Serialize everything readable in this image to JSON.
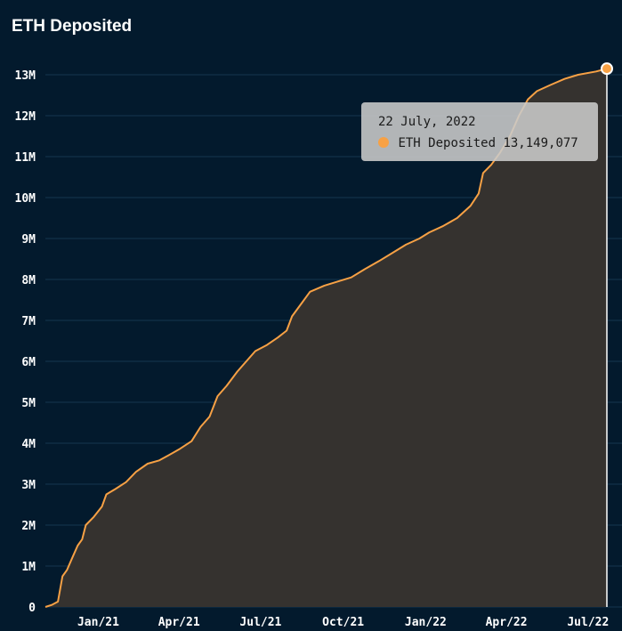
{
  "header": {
    "title": "ETH Deposited"
  },
  "colors": {
    "background": "#031a2d",
    "grid": "#15364f",
    "line": "#f7a145",
    "area": "#35322f",
    "crosshair": "#ffffff"
  },
  "tooltip": {
    "date": "22 July, 2022",
    "series": "ETH Deposited",
    "value": "13,149,077"
  },
  "chart_data": {
    "type": "area",
    "title": "ETH Deposited",
    "y_ticks": [
      {
        "value": 0,
        "label": "0"
      },
      {
        "value": 1000000,
        "label": "1M"
      },
      {
        "value": 2000000,
        "label": "2M"
      },
      {
        "value": 3000000,
        "label": "3M"
      },
      {
        "value": 4000000,
        "label": "4M"
      },
      {
        "value": 5000000,
        "label": "5M"
      },
      {
        "value": 6000000,
        "label": "6M"
      },
      {
        "value": 7000000,
        "label": "7M"
      },
      {
        "value": 8000000,
        "label": "8M"
      },
      {
        "value": 9000000,
        "label": "9M"
      },
      {
        "value": 10000000,
        "label": "10M"
      },
      {
        "value": 11000000,
        "label": "11M"
      },
      {
        "value": 12000000,
        "label": "12M"
      },
      {
        "value": 13000000,
        "label": "13M"
      }
    ],
    "x_ticks": [
      {
        "date": "2021-01-01",
        "label": "Jan/21"
      },
      {
        "date": "2021-04-01",
        "label": "Apr/21"
      },
      {
        "date": "2021-07-01",
        "label": "Jul/21"
      },
      {
        "date": "2021-10-01",
        "label": "Oct/21"
      },
      {
        "date": "2022-01-01",
        "label": "Jan/22"
      },
      {
        "date": "2022-04-01",
        "label": "Apr/22"
      },
      {
        "date": "2022-07-01",
        "label": "Jul/22"
      }
    ],
    "xlim": [
      "2020-11-03",
      "2022-07-22"
    ],
    "ylim": [
      0,
      13000000
    ],
    "grid": true,
    "legend": "none",
    "highlight": {
      "date": "2022-07-22",
      "value": 13149077
    },
    "series": [
      {
        "name": "ETH Deposited",
        "points": [
          [
            "2020-11-03",
            0
          ],
          [
            "2020-11-10",
            50000
          ],
          [
            "2020-11-17",
            130000
          ],
          [
            "2020-11-22",
            750000
          ],
          [
            "2020-11-27",
            900000
          ],
          [
            "2020-12-03",
            1200000
          ],
          [
            "2020-12-09",
            1500000
          ],
          [
            "2020-12-14",
            1650000
          ],
          [
            "2020-12-18",
            2000000
          ],
          [
            "2020-12-27",
            2200000
          ],
          [
            "2021-01-05",
            2450000
          ],
          [
            "2021-01-10",
            2750000
          ],
          [
            "2021-01-20",
            2880000
          ],
          [
            "2021-02-01",
            3050000
          ],
          [
            "2021-02-12",
            3300000
          ],
          [
            "2021-02-25",
            3500000
          ],
          [
            "2021-03-10",
            3580000
          ],
          [
            "2021-03-20",
            3700000
          ],
          [
            "2021-04-01",
            3850000
          ],
          [
            "2021-04-15",
            4050000
          ],
          [
            "2021-04-25",
            4400000
          ],
          [
            "2021-05-05",
            4650000
          ],
          [
            "2021-05-14",
            5150000
          ],
          [
            "2021-05-24",
            5400000
          ],
          [
            "2021-06-05",
            5750000
          ],
          [
            "2021-06-15",
            6000000
          ],
          [
            "2021-06-25",
            6250000
          ],
          [
            "2021-07-08",
            6400000
          ],
          [
            "2021-07-20",
            6580000
          ],
          [
            "2021-07-30",
            6750000
          ],
          [
            "2021-08-05",
            7100000
          ],
          [
            "2021-08-15",
            7400000
          ],
          [
            "2021-08-25",
            7700000
          ],
          [
            "2021-09-10",
            7850000
          ],
          [
            "2021-09-25",
            7950000
          ],
          [
            "2021-10-10",
            8050000
          ],
          [
            "2021-10-25",
            8250000
          ],
          [
            "2021-11-10",
            8450000
          ],
          [
            "2021-11-25",
            8650000
          ],
          [
            "2021-12-10",
            8850000
          ],
          [
            "2021-12-25",
            9000000
          ],
          [
            "2022-01-05",
            9150000
          ],
          [
            "2022-01-20",
            9300000
          ],
          [
            "2022-02-05",
            9500000
          ],
          [
            "2022-02-20",
            9800000
          ],
          [
            "2022-03-01",
            10100000
          ],
          [
            "2022-03-06",
            10600000
          ],
          [
            "2022-03-15",
            10800000
          ],
          [
            "2022-03-25",
            11100000
          ],
          [
            "2022-04-05",
            11500000
          ],
          [
            "2022-04-15",
            12000000
          ],
          [
            "2022-04-25",
            12400000
          ],
          [
            "2022-05-05",
            12600000
          ],
          [
            "2022-05-20",
            12750000
          ],
          [
            "2022-06-05",
            12900000
          ],
          [
            "2022-06-20",
            13000000
          ],
          [
            "2022-07-10",
            13080000
          ],
          [
            "2022-07-22",
            13149077
          ]
        ]
      }
    ]
  }
}
